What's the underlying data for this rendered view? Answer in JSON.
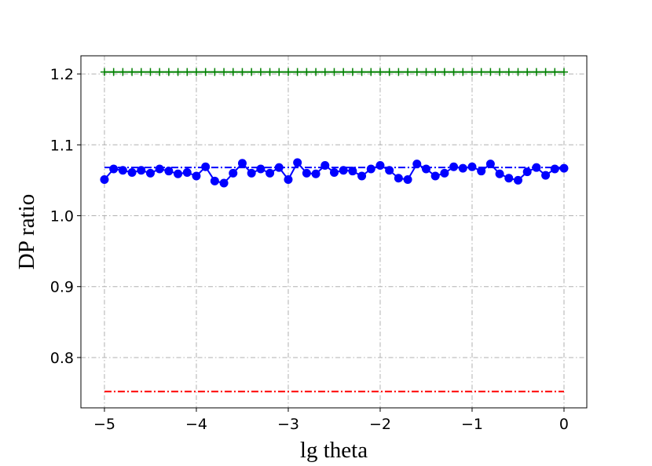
{
  "chart_data": {
    "type": "line",
    "xlabel": "lg theta",
    "ylabel": "DP ratio",
    "x": [
      -5,
      -4.9,
      -4.8,
      -4.7,
      -4.6,
      -4.5,
      -4.4,
      -4.3,
      -4.2,
      -4.1,
      -4,
      -3.9,
      -3.8,
      -3.7,
      -3.6,
      -3.5,
      -3.4,
      -3.3,
      -3.2,
      -3.1,
      -3,
      -2.9,
      -2.8,
      -2.7,
      -2.6,
      -2.5,
      -2.4,
      -2.3,
      -2.2,
      -2.1,
      -2,
      -1.9,
      -1.8,
      -1.7,
      -1.6,
      -1.5,
      -1.4,
      -1.3,
      -1.2,
      -1.1,
      -1,
      -0.9,
      -0.8,
      -0.7,
      -0.6,
      -0.5,
      -0.4,
      -0.3,
      -0.2,
      -0.1,
      0
    ],
    "series": [
      {
        "color": "#008000",
        "linestyle": "solid",
        "marker": "plus",
        "values": [
          1.2027,
          1.2027,
          1.2027,
          1.2027,
          1.2027,
          1.2027,
          1.2027,
          1.2027,
          1.2027,
          1.2027,
          1.2027,
          1.2027,
          1.2027,
          1.2027,
          1.2027,
          1.2027,
          1.2027,
          1.2027,
          1.2027,
          1.2027,
          1.2027,
          1.2027,
          1.2027,
          1.2027,
          1.2027,
          1.2027,
          1.2027,
          1.2027,
          1.2027,
          1.2027,
          1.2027,
          1.2027,
          1.2027,
          1.2027,
          1.2027,
          1.2027,
          1.2027,
          1.2027,
          1.2027,
          1.2027,
          1.2027,
          1.2027,
          1.2027,
          1.2027,
          1.2027,
          1.2027,
          1.2027,
          1.2027,
          1.2027,
          1.2027,
          1.2027
        ]
      },
      {
        "color": "#0000ff",
        "linestyle": "solid",
        "marker": "circle",
        "values": [
          1.051,
          1.066,
          1.064,
          1.061,
          1.064,
          1.06,
          1.066,
          1.063,
          1.059,
          1.061,
          1.056,
          1.069,
          1.049,
          1.046,
          1.06,
          1.074,
          1.06,
          1.066,
          1.06,
          1.068,
          1.051,
          1.075,
          1.06,
          1.059,
          1.071,
          1.061,
          1.064,
          1.063,
          1.056,
          1.066,
          1.071,
          1.064,
          1.053,
          1.051,
          1.073,
          1.066,
          1.056,
          1.06,
          1.069,
          1.067,
          1.069,
          1.063,
          1.073,
          1.059,
          1.053,
          1.05,
          1.062,
          1.068,
          1.057,
          1.066,
          1.067
        ]
      },
      {
        "color": "#0000ff",
        "linestyle": "dashdot",
        "marker": "none",
        "values": [
          1.068,
          1.068,
          1.068,
          1.068,
          1.068,
          1.068,
          1.068,
          1.068,
          1.068,
          1.068,
          1.068,
          1.068,
          1.068,
          1.068,
          1.068,
          1.068,
          1.068,
          1.068,
          1.068,
          1.068,
          1.068,
          1.068,
          1.068,
          1.068,
          1.068,
          1.068,
          1.068,
          1.068,
          1.068,
          1.068,
          1.068,
          1.068,
          1.068,
          1.068,
          1.068,
          1.068,
          1.068,
          1.068,
          1.068,
          1.068,
          1.068,
          1.068,
          1.068,
          1.068,
          1.068,
          1.068,
          1.068,
          1.068,
          1.068,
          1.068,
          1.068
        ]
      },
      {
        "color": "#ff0000",
        "linestyle": "dashdot",
        "marker": "none",
        "values": [
          0.752,
          0.752,
          0.752,
          0.752,
          0.752,
          0.752,
          0.752,
          0.752,
          0.752,
          0.752,
          0.752,
          0.752,
          0.752,
          0.752,
          0.752,
          0.752,
          0.752,
          0.752,
          0.752,
          0.752,
          0.752,
          0.752,
          0.752,
          0.752,
          0.752,
          0.752,
          0.752,
          0.752,
          0.752,
          0.752,
          0.752,
          0.752,
          0.752,
          0.752,
          0.752,
          0.752,
          0.752,
          0.752,
          0.752,
          0.752,
          0.752,
          0.752,
          0.752,
          0.752,
          0.752,
          0.752,
          0.752,
          0.752,
          0.752,
          0.752,
          0.752
        ]
      }
    ],
    "xlim": [
      -5.256,
      0.248
    ],
    "xticks": [
      {
        "value": -5,
        "label": "−5"
      },
      {
        "value": -4,
        "label": "−4"
      },
      {
        "value": -3,
        "label": "−3"
      },
      {
        "value": -2,
        "label": "−2"
      },
      {
        "value": -1,
        "label": "−1"
      },
      0
    ],
    "ylim": [
      0.729,
      1.2256
    ],
    "yticks": [
      0.8,
      0.9,
      {
        "value": 1.0,
        "label": "1.0"
      },
      1.1,
      1.2
    ],
    "grid": true
  }
}
